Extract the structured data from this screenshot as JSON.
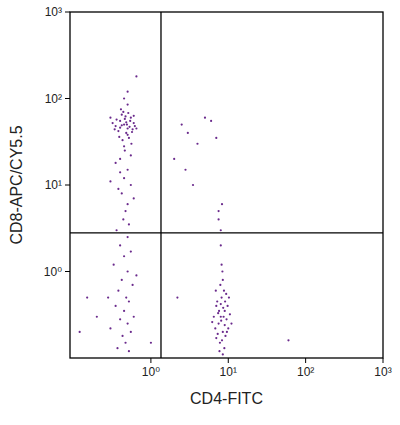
{
  "chart_data": {
    "type": "scatter",
    "x_label": "CD4-FITC",
    "y_label": "CD8-APC/CY5.5",
    "log": true,
    "color": "#6a2a8c",
    "marker": "dot",
    "xlim": [
      0.09,
      1000
    ],
    "ylim": [
      0.1,
      1000
    ],
    "xticks": [
      {
        "value": 1,
        "label": "10⁰"
      },
      {
        "value": 10,
        "label": "10¹"
      },
      {
        "value": 100,
        "label": "10²"
      },
      {
        "value": 1000,
        "label": "10³"
      }
    ],
    "yticks": [
      {
        "value": 1,
        "label": "10⁰"
      },
      {
        "value": 10,
        "label": "10¹"
      },
      {
        "value": 100,
        "label": "10²"
      },
      {
        "value": 1000,
        "label": "10³"
      }
    ],
    "quadrant_lines": {
      "x": 1.35,
      "y": 2.8
    },
    "x": [
      0.45,
      0.5,
      0.4,
      0.55,
      0.35,
      0.48,
      0.6,
      0.42,
      0.52,
      0.38,
      0.46,
      0.58,
      0.44,
      0.5,
      0.32,
      0.62,
      0.4,
      0.54,
      0.47,
      0.36,
      0.43,
      0.57,
      0.49,
      0.41,
      0.53,
      0.39,
      0.6,
      0.45,
      0.51,
      0.34,
      0.56,
      0.48,
      0.42,
      0.65,
      0.3,
      0.5,
      0.46,
      0.65,
      0.5,
      0.45,
      0.4,
      0.5,
      0.45,
      0.35,
      0.55,
      0.42,
      0.5,
      0.38,
      0.6,
      0.47,
      0.44,
      0.52,
      0.36,
      0.5,
      0.4,
      0.55,
      0.45,
      0.33,
      0.5,
      0.42,
      0.58,
      0.38,
      0.48,
      0.52,
      0.35,
      0.45,
      0.6,
      0.4,
      0.5,
      0.3,
      0.55,
      0.43,
      0.47,
      0.37,
      0.52,
      0.28,
      0.65,
      0.4,
      0.55,
      0.3,
      0.12,
      0.15,
      0.2,
      1.0,
      2.5,
      3,
      2,
      4,
      5,
      2.8,
      6,
      7,
      3.5,
      7.5,
      2.2,
      60,
      8,
      7.5,
      9,
      8.5,
      7,
      9.5,
      8.2,
      6.5,
      10,
      7.8,
      8.8,
      9.2,
      7.2,
      8.5,
      6.8,
      10.5,
      7.6,
      8.9,
      9.8,
      8.1,
      7.3,
      8.6,
      9.4,
      6.2,
      7.9,
      8.4,
      9,
      7.7,
      8.3,
      10.2,
      6.9,
      8.7,
      9.6,
      7.4,
      8,
      11,
      8.5,
      7,
      9.1,
      8.2,
      8,
      7.5,
      8.3,
      8
    ],
    "y": [
      50,
      45,
      55,
      60,
      48,
      40,
      52,
      65,
      35,
      42,
      58,
      44,
      70,
      38,
      52,
      48,
      46,
      55,
      62,
      57,
      33,
      41,
      50,
      75,
      47,
      36,
      63,
      28,
      68,
      44,
      30,
      53,
      49,
      45,
      60,
      85,
      25,
      180,
      120,
      100,
      20,
      15,
      12,
      18,
      10,
      8,
      6,
      9,
      7,
      5,
      4,
      3.5,
      3,
      2.5,
      2,
      1.7,
      1.5,
      1.2,
      1,
      0.8,
      0.7,
      0.6,
      0.5,
      0.45,
      0.4,
      0.35,
      0.3,
      0.28,
      0.25,
      0.22,
      0.2,
      0.18,
      0.15,
      0.13,
      0.12,
      0.5,
      0.9,
      14,
      22,
      11,
      0.2,
      0.5,
      0.3,
      0.15,
      50,
      40,
      20,
      30,
      60,
      15,
      55,
      35,
      10,
      5,
      0.5,
      0.16,
      0.3,
      0.25,
      0.35,
      0.2,
      0.4,
      0.28,
      0.5,
      0.3,
      0.22,
      0.15,
      0.6,
      0.18,
      0.45,
      0.8,
      0.22,
      0.32,
      0.35,
      0.13,
      0.4,
      0.27,
      0.19,
      0.38,
      0.55,
      0.26,
      0.7,
      1.0,
      0.24,
      0.12,
      0.16,
      0.5,
      0.6,
      0.3,
      0.2,
      0.33,
      0.42,
      0.25,
      0.11,
      0.17,
      0.45,
      1.2,
      2,
      4,
      6,
      3
    ]
  }
}
